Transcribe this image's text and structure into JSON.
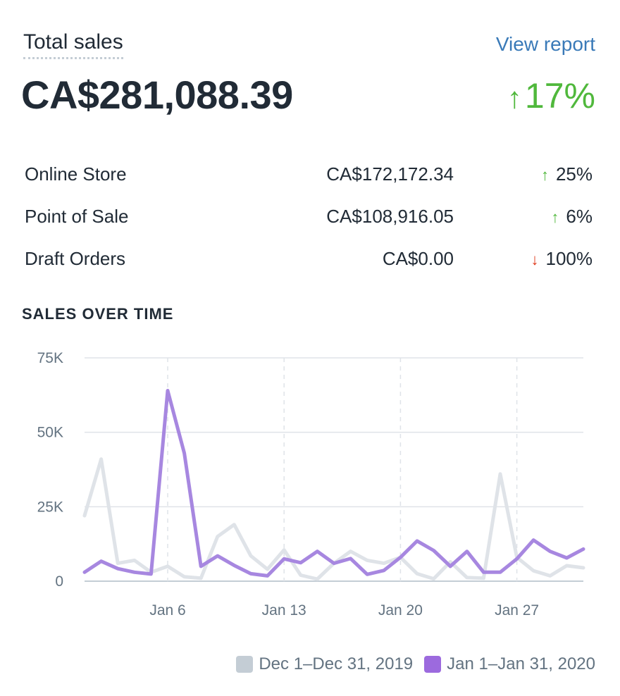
{
  "header": {
    "title": "Total sales",
    "view_report": "View report",
    "total": "CA$281,088.39",
    "total_change": "17%",
    "total_change_dir": "up"
  },
  "breakdown": [
    {
      "label": "Online Store",
      "value": "CA$172,172.34",
      "change": "25%",
      "dir": "up"
    },
    {
      "label": "Point of Sale",
      "value": "CA$108,916.05",
      "change": "6%",
      "dir": "up"
    },
    {
      "label": "Draft Orders",
      "value": "CA$0.00",
      "change": "100%",
      "dir": "down"
    }
  ],
  "icons": {
    "up": "↑",
    "down": "↓"
  },
  "section_title": "SALES OVER TIME",
  "chart_data": {
    "type": "line",
    "title": "SALES OVER TIME",
    "x": [
      1,
      2,
      3,
      4,
      5,
      6,
      7,
      8,
      9,
      10,
      11,
      12,
      13,
      14,
      15,
      16,
      17,
      18,
      19,
      20,
      21,
      22,
      23,
      24,
      25,
      26,
      27,
      28,
      29,
      30,
      31
    ],
    "x_ticks": [
      {
        "day": 6,
        "label": "Jan 6"
      },
      {
        "day": 13,
        "label": "Jan 13"
      },
      {
        "day": 20,
        "label": "Jan 20"
      },
      {
        "day": 27,
        "label": "Jan 27"
      }
    ],
    "y_ticks": [
      {
        "value": 0,
        "label": "0"
      },
      {
        "value": 25000,
        "label": "25K"
      },
      {
        "value": 50000,
        "label": "50K"
      },
      {
        "value": 75000,
        "label": "75K"
      }
    ],
    "ylim": [
      0,
      75000
    ],
    "xlim": [
      1,
      31
    ],
    "series": [
      {
        "name": "Dec 1–Dec 31, 2019",
        "color": "#dfe3e8",
        "legend_color": "#c4cdd5",
        "values": [
          22000,
          41000,
          6000,
          7000,
          3000,
          5000,
          1500,
          1000,
          15000,
          19000,
          8500,
          4000,
          10500,
          2000,
          700,
          6000,
          10000,
          7000,
          6000,
          8000,
          2500,
          800,
          6500,
          1200,
          1000,
          36000,
          8000,
          3500,
          1800,
          5200,
          4500
        ]
      },
      {
        "name": "Jan 1–Jan 31, 2020",
        "color": "#a787e0",
        "legend_color": "#9c6ade",
        "values": [
          3000,
          6700,
          4200,
          3000,
          2400,
          64000,
          43000,
          5000,
          8500,
          5300,
          2500,
          1800,
          7500,
          6200,
          10000,
          6000,
          7600,
          2300,
          3600,
          8000,
          13500,
          10300,
          5000,
          10000,
          3000,
          3000,
          7500,
          13800,
          10000,
          7800,
          10800
        ]
      }
    ]
  }
}
